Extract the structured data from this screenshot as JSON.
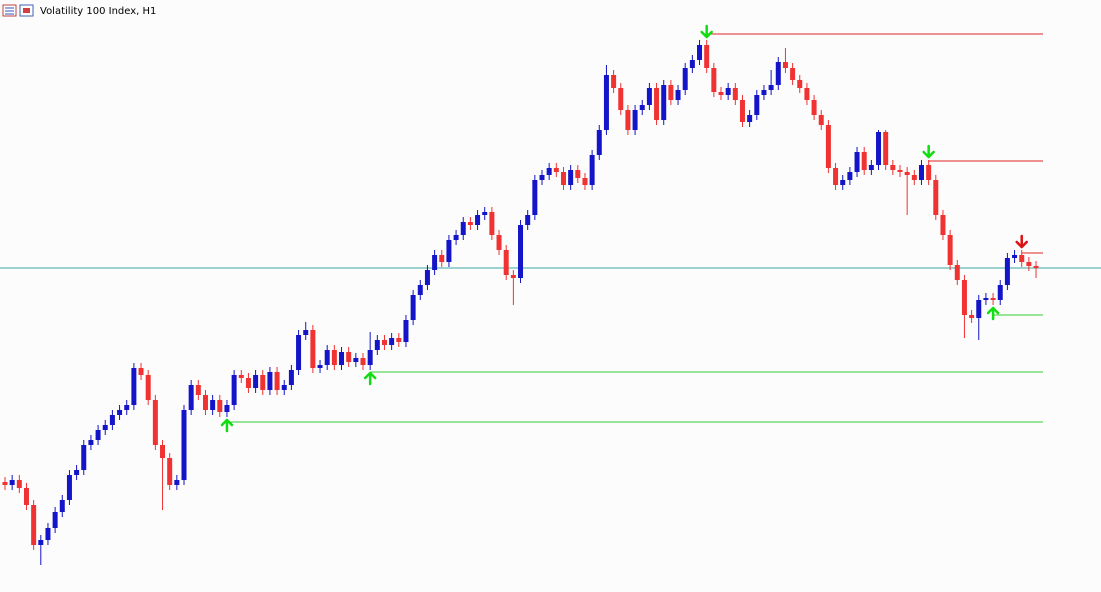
{
  "chart_data": {
    "type": "candlestick",
    "title": "Volatility 100 Index, H1",
    "ylim": [
      8,
      600
    ],
    "up_color": "#1414c8",
    "down_color": "#f03232",
    "open": [
      118,
      115,
      120,
      112,
      95,
      55,
      60,
      72,
      88,
      100,
      125,
      130,
      155,
      160,
      170,
      175,
      185,
      190,
      195,
      232,
      225,
      200,
      155,
      142,
      115,
      120,
      190,
      215,
      205,
      190,
      200,
      188,
      195,
      225,
      222,
      212,
      225,
      210,
      228,
      210,
      215,
      230,
      265,
      270,
      232,
      235,
      250,
      235,
      248,
      238,
      242,
      235,
      250,
      260,
      255,
      262,
      258,
      280,
      305,
      315,
      330,
      345,
      338,
      360,
      365,
      378,
      375,
      385,
      388,
      365,
      350,
      325,
      322,
      375,
      385,
      420,
      425,
      432,
      428,
      415,
      430,
      422,
      415,
      445,
      470,
      525,
      512,
      490,
      470,
      490,
      495,
      512,
      480,
      515,
      500,
      510,
      532,
      540,
      555,
      532,
      508,
      505,
      512,
      500,
      478,
      485,
      505,
      510,
      515,
      538,
      532,
      520,
      512,
      500,
      485,
      475,
      432,
      415,
      420,
      428,
      448,
      430,
      435,
      468,
      435,
      430,
      428,
      425,
      420,
      435,
      420,
      385,
      365,
      335,
      320,
      285,
      282,
      300,
      302,
      300,
      315,
      342,
      345,
      338,
      334
    ],
    "high": [
      123,
      125,
      125,
      117,
      100,
      65,
      77,
      93,
      105,
      130,
      135,
      160,
      165,
      175,
      180,
      190,
      195,
      200,
      237,
      237,
      230,
      205,
      160,
      147,
      125,
      195,
      220,
      220,
      210,
      205,
      205,
      200,
      230,
      230,
      227,
      230,
      230,
      233,
      233,
      220,
      235,
      270,
      278,
      275,
      240,
      255,
      255,
      253,
      253,
      247,
      247,
      268,
      265,
      265,
      267,
      267,
      285,
      310,
      320,
      335,
      350,
      350,
      365,
      370,
      383,
      383,
      390,
      393,
      393,
      370,
      355,
      330,
      380,
      390,
      425,
      430,
      437,
      437,
      433,
      435,
      435,
      427,
      450,
      475,
      535,
      530,
      517,
      495,
      495,
      500,
      517,
      517,
      520,
      520,
      515,
      537,
      545,
      560,
      560,
      537,
      513,
      517,
      517,
      505,
      490,
      510,
      515,
      530,
      543,
      552,
      537,
      525,
      517,
      505,
      490,
      480,
      437,
      425,
      433,
      453,
      453,
      440,
      470,
      470,
      440,
      435,
      433,
      430,
      440,
      440,
      425,
      390,
      370,
      340,
      325,
      290,
      305,
      307,
      307,
      320,
      347,
      350,
      350,
      343,
      339
    ],
    "low": [
      110,
      110,
      107,
      90,
      50,
      35,
      55,
      67,
      83,
      95,
      120,
      125,
      150,
      155,
      165,
      170,
      180,
      185,
      190,
      220,
      195,
      150,
      90,
      110,
      110,
      115,
      185,
      200,
      185,
      185,
      183,
      183,
      190,
      217,
      207,
      207,
      205,
      205,
      205,
      205,
      210,
      225,
      260,
      227,
      227,
      230,
      230,
      230,
      233,
      233,
      230,
      230,
      245,
      250,
      250,
      253,
      253,
      275,
      300,
      310,
      325,
      333,
      333,
      355,
      360,
      370,
      370,
      380,
      360,
      345,
      320,
      295,
      317,
      370,
      380,
      415,
      420,
      423,
      410,
      410,
      417,
      410,
      410,
      440,
      465,
      507,
      485,
      465,
      465,
      485,
      490,
      475,
      475,
      495,
      495,
      505,
      527,
      535,
      527,
      503,
      500,
      500,
      495,
      473,
      473,
      480,
      500,
      505,
      510,
      527,
      515,
      507,
      495,
      480,
      470,
      427,
      410,
      410,
      415,
      423,
      425,
      425,
      430,
      430,
      425,
      423,
      385,
      415,
      415,
      415,
      380,
      360,
      330,
      315,
      262,
      277,
      260,
      295,
      295,
      295,
      310,
      337,
      333,
      329,
      322
    ],
    "close": [
      115,
      120,
      112,
      95,
      55,
      60,
      72,
      88,
      100,
      125,
      130,
      155,
      160,
      170,
      175,
      185,
      190,
      195,
      232,
      225,
      200,
      155,
      142,
      115,
      120,
      190,
      215,
      205,
      190,
      200,
      188,
      195,
      225,
      222,
      212,
      225,
      210,
      228,
      210,
      215,
      230,
      265,
      270,
      232,
      235,
      250,
      235,
      248,
      238,
      242,
      235,
      250,
      260,
      255,
      262,
      258,
      280,
      305,
      315,
      330,
      345,
      338,
      360,
      365,
      378,
      375,
      385,
      388,
      365,
      350,
      325,
      322,
      375,
      385,
      420,
      425,
      432,
      428,
      415,
      430,
      422,
      415,
      445,
      470,
      525,
      512,
      490,
      470,
      490,
      495,
      512,
      480,
      515,
      500,
      510,
      532,
      540,
      555,
      532,
      508,
      505,
      512,
      500,
      478,
      485,
      505,
      510,
      515,
      538,
      532,
      520,
      512,
      500,
      485,
      475,
      432,
      415,
      420,
      428,
      448,
      430,
      435,
      468,
      435,
      430,
      428,
      425,
      420,
      435,
      420,
      385,
      365,
      335,
      320,
      285,
      282,
      300,
      302,
      300,
      315,
      342,
      345,
      338,
      334,
      332
    ],
    "price_line": {
      "value": 332,
      "color": "#3aa6a6"
    },
    "levels": [
      {
        "value": 566,
        "start": 98,
        "color": "#e02424"
      },
      {
        "value": 439,
        "start": 129,
        "color": "#e02424"
      },
      {
        "value": 347,
        "start": 142,
        "color": "#e02424"
      },
      {
        "value": 285,
        "start": 138,
        "color": "#33cc33"
      },
      {
        "value": 228,
        "start": 51,
        "color": "#33cc33"
      },
      {
        "value": 178,
        "start": 31,
        "color": "#33cc33"
      }
    ],
    "signals": [
      {
        "index": 98,
        "direction": "down",
        "color": "#11dd11"
      },
      {
        "index": 129,
        "direction": "down",
        "color": "#11dd11"
      },
      {
        "index": 142,
        "direction": "down",
        "color": "#dd1111"
      },
      {
        "index": 31,
        "direction": "up",
        "color": "#11dd11"
      },
      {
        "index": 51,
        "direction": "up",
        "color": "#11dd11"
      },
      {
        "index": 138,
        "direction": "up",
        "color": "#11dd11"
      }
    ]
  }
}
